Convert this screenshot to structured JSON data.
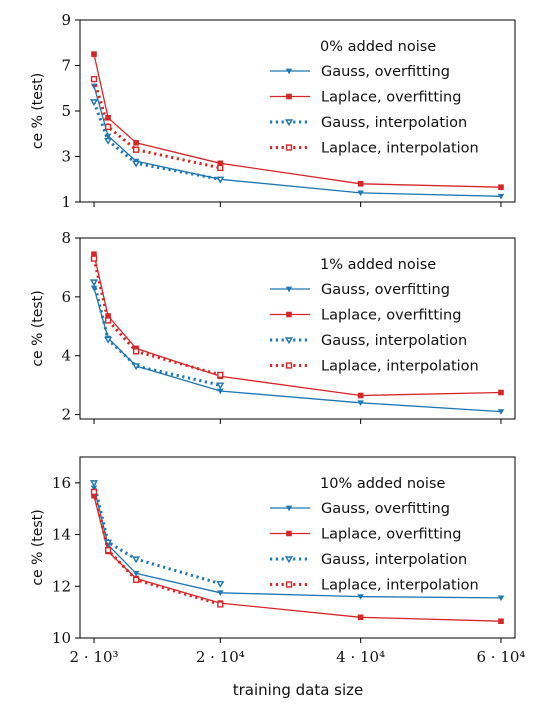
{
  "colors": {
    "gauss": "#1f77b4",
    "laplace": "#d62728"
  },
  "shared_x": {
    "xlabel": "training data size",
    "tick_values": [
      2000,
      20000,
      40000,
      60000
    ],
    "tick_labels": [
      "2 · 10³",
      "2 · 10⁴",
      "4 · 10⁴",
      "6 · 10⁴"
    ]
  },
  "chart_data": [
    {
      "type": "line",
      "title": "0% added noise",
      "ylabel": "ce % (test)",
      "ylim": [
        1,
        9
      ],
      "yticks": [
        1,
        3,
        5,
        7,
        9
      ],
      "xlim": [
        0,
        62000
      ],
      "grid": false,
      "legend_position": "top-right",
      "series": [
        {
          "name": "Gauss, overfitting",
          "color": "#1f77b4",
          "marker": "triangle-down",
          "style": "solid",
          "x": [
            2000,
            4000,
            8000,
            20000,
            40000,
            60000
          ],
          "y": [
            6.1,
            3.9,
            2.8,
            2.0,
            1.4,
            1.25
          ]
        },
        {
          "name": "Laplace, overfitting",
          "color": "#d62728",
          "marker": "square",
          "style": "solid",
          "x": [
            2000,
            4000,
            8000,
            20000,
            40000,
            60000
          ],
          "y": [
            7.5,
            4.7,
            3.6,
            2.7,
            1.8,
            1.65
          ]
        },
        {
          "name": "Gauss, interpolation",
          "color": "#1f77b4",
          "marker": "triangle-down-open",
          "style": "dotted",
          "x": [
            2000,
            4000,
            8000,
            20000
          ],
          "y": [
            5.4,
            3.7,
            2.7,
            2.0
          ]
        },
        {
          "name": "Laplace, interpolation",
          "color": "#d62728",
          "marker": "square-open",
          "style": "dotted",
          "x": [
            2000,
            4000,
            8000,
            20000
          ],
          "y": [
            6.4,
            4.3,
            3.3,
            2.5
          ]
        }
      ]
    },
    {
      "type": "line",
      "title": "1% added noise",
      "ylabel": "ce % (test)",
      "ylim": [
        1.85,
        8
      ],
      "yticks": [
        2,
        4,
        6,
        8
      ],
      "xlim": [
        0,
        62000
      ],
      "grid": false,
      "legend_position": "top-right",
      "series": [
        {
          "name": "Gauss, overfitting",
          "color": "#1f77b4",
          "marker": "triangle-down",
          "style": "solid",
          "x": [
            2000,
            4000,
            8000,
            20000,
            40000,
            60000
          ],
          "y": [
            6.3,
            4.6,
            3.65,
            2.8,
            2.4,
            2.1
          ]
        },
        {
          "name": "Laplace, overfitting",
          "color": "#d62728",
          "marker": "square",
          "style": "solid",
          "x": [
            2000,
            4000,
            8000,
            20000,
            40000,
            60000
          ],
          "y": [
            7.45,
            5.35,
            4.25,
            3.3,
            2.65,
            2.75
          ]
        },
        {
          "name": "Gauss, interpolation",
          "color": "#1f77b4",
          "marker": "triangle-down-open",
          "style": "dotted",
          "x": [
            2000,
            4000,
            8000,
            20000
          ],
          "y": [
            6.5,
            4.55,
            3.65,
            3.0
          ]
        },
        {
          "name": "Laplace, interpolation",
          "color": "#d62728",
          "marker": "square-open",
          "style": "dotted",
          "x": [
            2000,
            4000,
            8000,
            20000
          ],
          "y": [
            7.3,
            5.2,
            4.15,
            3.35
          ]
        }
      ]
    },
    {
      "type": "line",
      "title": "10% added noise",
      "ylabel": "ce % (test)",
      "ylim": [
        10,
        17
      ],
      "yticks": [
        10,
        12,
        14,
        16
      ],
      "xlim": [
        0,
        62000
      ],
      "grid": false,
      "legend_position": "top-right",
      "series": [
        {
          "name": "Gauss, overfitting",
          "color": "#1f77b4",
          "marker": "triangle-down",
          "style": "solid",
          "x": [
            2000,
            4000,
            8000,
            20000,
            40000,
            60000
          ],
          "y": [
            15.8,
            13.6,
            12.5,
            11.75,
            11.6,
            11.55
          ]
        },
        {
          "name": "Laplace, overfitting",
          "color": "#d62728",
          "marker": "square",
          "style": "solid",
          "x": [
            2000,
            4000,
            8000,
            20000,
            40000,
            60000
          ],
          "y": [
            15.5,
            13.35,
            12.3,
            11.35,
            10.8,
            10.65
          ]
        },
        {
          "name": "Gauss, interpolation",
          "color": "#1f77b4",
          "marker": "triangle-down-open",
          "style": "dotted",
          "x": [
            2000,
            4000,
            8000,
            20000
          ],
          "y": [
            16.0,
            13.7,
            13.05,
            12.1
          ]
        },
        {
          "name": "Laplace, interpolation",
          "color": "#d62728",
          "marker": "square-open",
          "style": "dotted",
          "x": [
            2000,
            4000,
            8000,
            20000
          ],
          "y": [
            15.65,
            13.4,
            12.25,
            11.3
          ]
        }
      ]
    }
  ]
}
